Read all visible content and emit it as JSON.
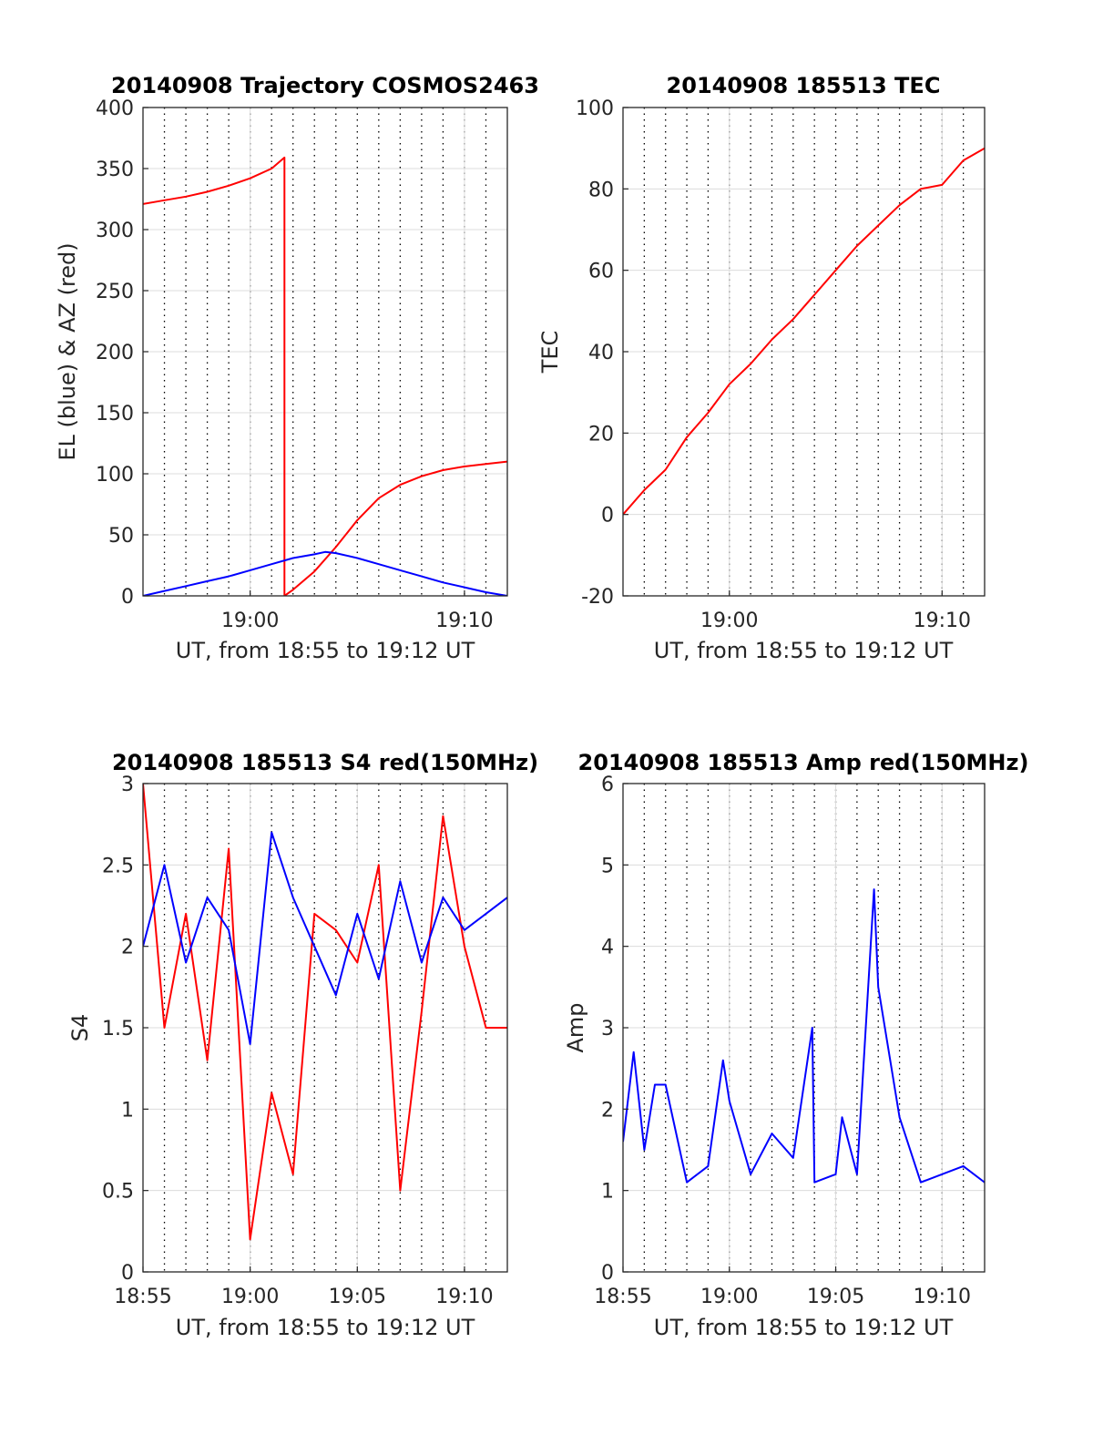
{
  "colors": {
    "red": "#ff0000",
    "blue": "#0000ff",
    "grid": "#dcdcdc",
    "axis": "#262626"
  },
  "chart_data": [
    {
      "id": "trajectory",
      "type": "line",
      "title": "20140908 Trajectory COSMOS2463",
      "xlabel": "UT, from 18:55 to 19:12 UT",
      "ylabel": "EL (blue) & AZ (red)",
      "xlim": [
        "18:55",
        "19:12"
      ],
      "ylim": [
        0,
        400
      ],
      "xticks": [
        "19:00",
        "19:10"
      ],
      "yticks": [
        "0",
        "50",
        "100",
        "150",
        "200",
        "250",
        "300",
        "350",
        "400"
      ],
      "grid": true,
      "series": [
        {
          "color": "#ff0000",
          "style": "AZ",
          "x": [
            "18:55",
            "18:56",
            "18:57",
            "18:58",
            "18:59",
            "19:00",
            "19:01",
            "19:01.6",
            "19:01.6",
            "19:02",
            "19:03",
            "19:04",
            "19:05",
            "19:06",
            "19:07",
            "19:08",
            "19:09",
            "19:10",
            "19:11",
            "19:12"
          ],
          "y": [
            321,
            324,
            327,
            331,
            336,
            342,
            350,
            359,
            0,
            5,
            20,
            40,
            62,
            80,
            91,
            98,
            103,
            106,
            108,
            110
          ]
        },
        {
          "color": "#0000ff",
          "style": "EL",
          "x": [
            "18:55",
            "18:56",
            "18:57",
            "18:58",
            "18:59",
            "19:00",
            "19:01",
            "19:02",
            "19:03",
            "19:03.5",
            "19:04",
            "19:05",
            "19:06",
            "19:07",
            "19:08",
            "19:09",
            "19:10",
            "19:11",
            "19:12"
          ],
          "y": [
            0,
            4,
            8,
            12,
            16,
            21,
            26,
            31,
            34,
            36,
            35,
            31,
            26,
            21,
            16,
            11,
            7,
            3,
            0
          ]
        }
      ]
    },
    {
      "id": "tec",
      "type": "line",
      "title": "20140908 185513 TEC",
      "xlabel": "UT, from 18:55 to 19:12 UT",
      "ylabel": "TEC",
      "xlim": [
        "18:55",
        "19:12"
      ],
      "ylim": [
        -20,
        100
      ],
      "xticks": [
        "19:00",
        "19:10"
      ],
      "yticks": [
        "-20",
        "0",
        "20",
        "40",
        "60",
        "80",
        "100"
      ],
      "grid": true,
      "series": [
        {
          "color": "#ff0000",
          "x": [
            "18:55",
            "18:56",
            "18:57",
            "18:58",
            "18:59",
            "19:00",
            "19:01",
            "19:02",
            "19:03",
            "19:04",
            "19:05",
            "19:06",
            "19:07",
            "19:08",
            "19:09",
            "19:10",
            "19:11",
            "19:12"
          ],
          "y": [
            0,
            6,
            11,
            19,
            25,
            32,
            37,
            43,
            48,
            54,
            60,
            66,
            71,
            76,
            80,
            81,
            87,
            90
          ]
        }
      ]
    },
    {
      "id": "s4",
      "type": "line",
      "title": "20140908 185513 S4 red(150MHz)",
      "xlabel": "UT, from 18:55 to 19:12 UT",
      "ylabel": "S4",
      "xlim": [
        "18:55",
        "19:12"
      ],
      "ylim": [
        0,
        3
      ],
      "xticks": [
        "18:55",
        "19:00",
        "19:05",
        "19:10"
      ],
      "yticks": [
        "0",
        "0.5",
        "1",
        "1.5",
        "2",
        "2.5",
        "3"
      ],
      "grid": true,
      "series": [
        {
          "color": "#ff0000",
          "x": [
            "18:55",
            "18:56",
            "18:57",
            "18:58",
            "18:59",
            "19:00",
            "19:01",
            "19:02",
            "19:03",
            "19:04",
            "19:05",
            "19:06",
            "19:07",
            "19:08",
            "19:09",
            "19:10",
            "19:11",
            "19:12"
          ],
          "y": [
            3,
            1.5,
            2.2,
            1.3,
            2.6,
            0.2,
            1.1,
            0.6,
            2.2,
            2.1,
            1.9,
            2.5,
            0.5,
            1.6,
            2.8,
            2.0,
            1.5,
            1.5
          ]
        },
        {
          "color": "#0000ff",
          "x": [
            "18:55",
            "18:56",
            "18:57",
            "18:58",
            "18:59",
            "19:00",
            "19:01",
            "19:02",
            "19:03",
            "19:04",
            "19:05",
            "19:06",
            "19:07",
            "19:08",
            "19:09",
            "19:10",
            "19:11",
            "19:12"
          ],
          "y": [
            2.0,
            2.5,
            1.9,
            2.3,
            2.1,
            1.4,
            2.7,
            2.3,
            2.0,
            1.7,
            2.2,
            1.8,
            2.4,
            1.9,
            2.3,
            2.1,
            2.2,
            2.3
          ]
        }
      ]
    },
    {
      "id": "amp",
      "type": "line",
      "title": "20140908 185513 Amp red(150MHz)",
      "xlabel": "UT, from 18:55 to 19:12 UT",
      "ylabel": "Amp",
      "xlim": [
        "18:55",
        "19:12"
      ],
      "ylim": [
        0,
        6
      ],
      "xticks": [
        "18:55",
        "19:00",
        "19:05",
        "19:10"
      ],
      "yticks": [
        "0",
        "1",
        "2",
        "3",
        "4",
        "5",
        "6"
      ],
      "grid": true,
      "series": [
        {
          "color": "#0000ff",
          "x": [
            "18:55",
            "18:55.5",
            "18:56",
            "18:56.5",
            "18:57",
            "18:58",
            "18:59",
            "18:59.7",
            "19:00",
            "19:01",
            "19:02",
            "19:03",
            "19:03.9",
            "19:04",
            "19:05",
            "19:05.3",
            "19:06",
            "19:06.8",
            "19:07",
            "19:08",
            "19:09",
            "19:10",
            "19:11",
            "19:12"
          ],
          "y": [
            1.6,
            2.7,
            1.5,
            2.3,
            2.3,
            1.1,
            1.3,
            2.6,
            2.1,
            1.2,
            1.7,
            1.4,
            3.0,
            1.1,
            1.2,
            1.9,
            1.2,
            4.7,
            3.5,
            1.9,
            1.1,
            1.2,
            1.3,
            1.1
          ]
        }
      ]
    }
  ]
}
